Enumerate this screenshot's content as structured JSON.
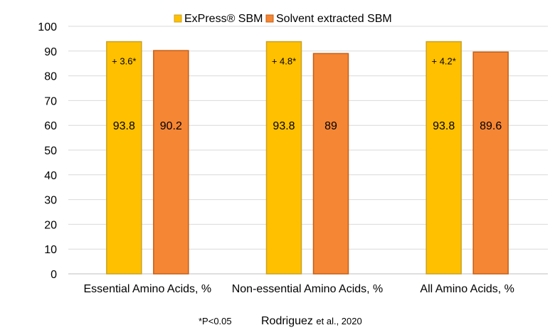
{
  "chart_data": {
    "type": "bar",
    "title": "",
    "xlabel": "",
    "ylabel": "",
    "ylim": [
      0,
      100
    ],
    "yticks": [
      0,
      10,
      20,
      30,
      40,
      50,
      60,
      70,
      80,
      90,
      100
    ],
    "grid": true,
    "legend_position": "top",
    "categories": [
      "Essential Amino Acids, %",
      "Non-essential Amino Acids, %",
      "All Amino Acids, %"
    ],
    "series": [
      {
        "name": "ExPress® SBM",
        "values": [
          93.8,
          93.8,
          93.8
        ],
        "labels": [
          "93.8",
          "93.8",
          "93.8"
        ],
        "color": "#FFC000",
        "edge_color": "#C9A227"
      },
      {
        "name": "Solvent extracted SBM",
        "values": [
          90.2,
          89,
          89.6
        ],
        "labels": [
          "90.2",
          "89",
          "89.6"
        ],
        "color": "#F58634",
        "edge_color": "#C45F16"
      }
    ],
    "annotations": [
      "+ 3.6*",
      "+ 4.8*",
      "+ 4.2*"
    ]
  },
  "footnote": {
    "significance": "*P<0.05",
    "citation_author": "Rodriguez",
    "citation_rest": "et al., 2020"
  }
}
